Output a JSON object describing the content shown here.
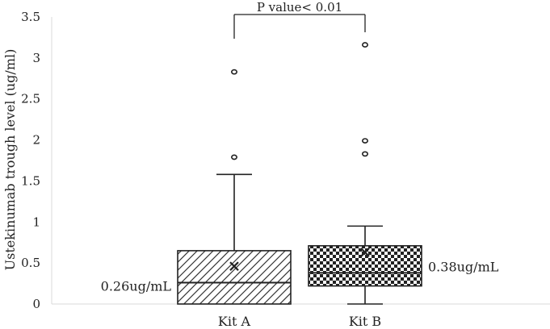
{
  "chart_data": {
    "type": "box",
    "title": "",
    "xlabel": "",
    "ylabel": "Ustekinumab trough level (ug/ml)",
    "ylim": [
      0,
      3.5
    ],
    "yticks": [
      "0",
      "0.5",
      "1",
      "1.5",
      "2",
      "2.5",
      "3",
      "3.5"
    ],
    "grid": false,
    "categories": [
      "Kit A",
      "Kit B"
    ],
    "boxes": [
      {
        "category": "Kit A",
        "min": 0,
        "q1": 0,
        "median": 0.26,
        "q3": 0.65,
        "whisker_high": 1.58,
        "mean": 0.46,
        "outliers": [
          1.79,
          2.83
        ],
        "fill_pattern": "diagonal-hatch",
        "median_label": "0.26ug/mL"
      },
      {
        "category": "Kit B",
        "min": 0,
        "q1": 0.22,
        "median": 0.38,
        "q3": 0.71,
        "whisker_high": 0.95,
        "mean": 0.63,
        "outliers": [
          1.83,
          1.99,
          3.16
        ],
        "fill_pattern": "checkerboard",
        "median_label": "0.38ug/mL"
      }
    ],
    "annotation": {
      "text": "P value< 0.01",
      "between": [
        "Kit A",
        "Kit B"
      ]
    },
    "colors": {
      "stroke": "#222222",
      "axis": "#d9d9d9",
      "text": "#222222"
    }
  }
}
